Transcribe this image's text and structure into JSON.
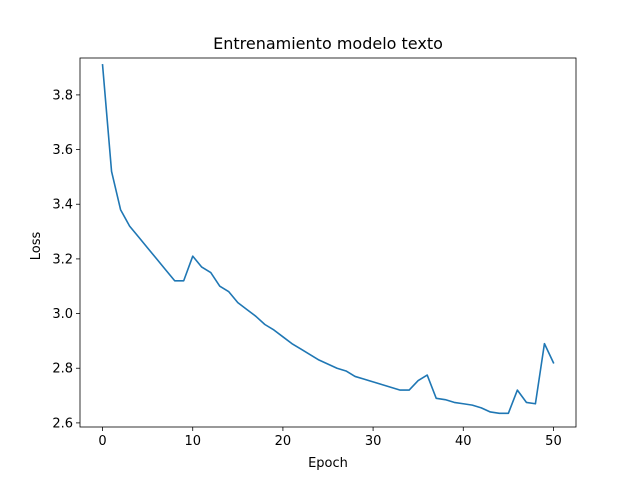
{
  "chart_data": {
    "type": "line",
    "title": "Entrenamiento modelo texto",
    "xlabel": "Epoch",
    "ylabel": "Loss",
    "xlim": [
      -2.5,
      52.5
    ],
    "ylim": [
      2.585,
      3.935
    ],
    "xticks": [
      0,
      10,
      20,
      30,
      40,
      50
    ],
    "yticks": [
      2.6,
      2.8,
      3.0,
      3.2,
      3.4,
      3.6,
      3.8
    ],
    "ytick_labels": [
      "2.6",
      "2.8",
      "3.0",
      "3.2",
      "3.4",
      "3.6",
      "3.8"
    ],
    "grid": false,
    "legend": "none",
    "series": [
      {
        "color": "#1f77b4",
        "x": [
          0,
          1,
          2,
          3,
          4,
          5,
          6,
          7,
          8,
          9,
          10,
          11,
          12,
          13,
          14,
          15,
          16,
          17,
          18,
          19,
          20,
          21,
          22,
          23,
          24,
          25,
          26,
          27,
          28,
          29,
          30,
          31,
          32,
          33,
          34,
          35,
          36,
          37,
          38,
          39,
          40,
          41,
          42,
          43,
          44,
          45,
          46,
          47,
          48,
          49,
          50
        ],
        "values": [
          3.91,
          3.52,
          3.38,
          3.32,
          3.28,
          3.24,
          3.2,
          3.16,
          3.12,
          3.12,
          3.21,
          3.17,
          3.15,
          3.1,
          3.08,
          3.04,
          3.015,
          2.99,
          2.96,
          2.94,
          2.915,
          2.89,
          2.87,
          2.85,
          2.83,
          2.815,
          2.8,
          2.79,
          2.77,
          2.76,
          2.75,
          2.74,
          2.73,
          2.72,
          2.72,
          2.755,
          2.775,
          2.69,
          2.685,
          2.675,
          2.67,
          2.665,
          2.655,
          2.64,
          2.635,
          2.635,
          2.72,
          2.675,
          2.67,
          2.89,
          2.82
        ]
      }
    ]
  }
}
